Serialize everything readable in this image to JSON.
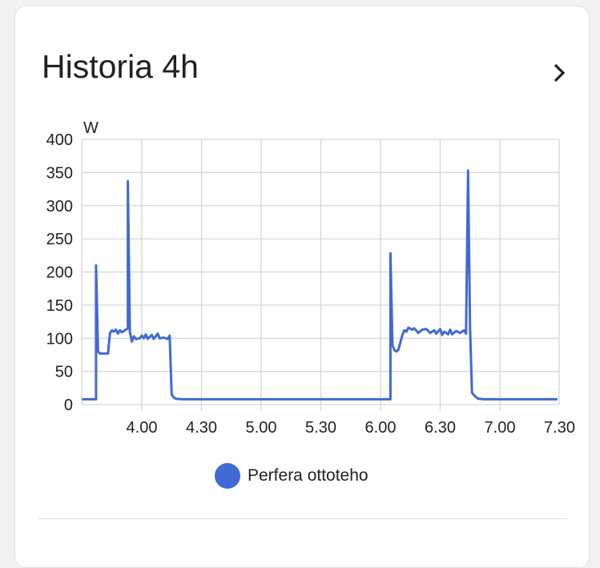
{
  "card": {
    "title": "Historia 4h",
    "more_icon": "chevron-right-icon"
  },
  "chart_data": {
    "type": "line",
    "ylabel": "W",
    "ylim": [
      0,
      400
    ],
    "yticks": [
      0,
      50,
      100,
      150,
      200,
      250,
      300,
      350,
      400
    ],
    "xlim": [
      "3:30",
      "7:29"
    ],
    "xticks": [
      "4.00",
      "4.30",
      "5.00",
      "5.30",
      "6.00",
      "6.30",
      "7.00",
      "7.30"
    ],
    "grid": true,
    "legend_position": "bottom",
    "series": [
      {
        "name": "Perfera ottoteho",
        "color": "#4169d4",
        "points": [
          [
            "3:30",
            8
          ],
          [
            "3:37",
            8
          ],
          [
            "3:37",
            210
          ],
          [
            "3:38",
            80
          ],
          [
            "3:39",
            77
          ],
          [
            "3:43",
            77
          ],
          [
            "3:44",
            108
          ],
          [
            "3:45",
            112
          ],
          [
            "3:46",
            110
          ],
          [
            "3:47",
            113
          ],
          [
            "3:48",
            107
          ],
          [
            "3:49",
            112
          ],
          [
            "3:50",
            109
          ],
          [
            "3:52",
            113
          ],
          [
            "3:53",
            115
          ],
          [
            "3:53",
            337
          ],
          [
            "3:54",
            110
          ],
          [
            "3:55",
            95
          ],
          [
            "3:56",
            103
          ],
          [
            "3:57",
            99
          ],
          [
            "3:59",
            100
          ],
          [
            "4:00",
            104
          ],
          [
            "4:01",
            100
          ],
          [
            "4:02",
            106
          ],
          [
            "4:03",
            99
          ],
          [
            "4:05",
            105
          ],
          [
            "4:06",
            99
          ],
          [
            "4:08",
            107
          ],
          [
            "4:09",
            100
          ],
          [
            "4:11",
            101
          ],
          [
            "4:13",
            99
          ],
          [
            "4:14",
            104
          ],
          [
            "4:15",
            15
          ],
          [
            "4:16",
            11
          ],
          [
            "4:17",
            9
          ],
          [
            "4:20",
            8
          ],
          [
            "6:05",
            8
          ],
          [
            "6:05",
            228
          ],
          [
            "6:06",
            90
          ],
          [
            "6:07",
            82
          ],
          [
            "6:08",
            80
          ],
          [
            "6:09",
            83
          ],
          [
            "6:11",
            105
          ],
          [
            "6:12",
            112
          ],
          [
            "6:13",
            110
          ],
          [
            "6:14",
            116
          ],
          [
            "6:16",
            113
          ],
          [
            "6:17",
            115
          ],
          [
            "6:19",
            108
          ],
          [
            "6:21",
            113
          ],
          [
            "6:23",
            114
          ],
          [
            "6:25",
            108
          ],
          [
            "6:27",
            112
          ],
          [
            "6:28",
            107
          ],
          [
            "6:30",
            114
          ],
          [
            "6:31",
            105
          ],
          [
            "6:32",
            110
          ],
          [
            "6:34",
            106
          ],
          [
            "6:35",
            113
          ],
          [
            "6:36",
            106
          ],
          [
            "6:38",
            111
          ],
          [
            "6:40",
            108
          ],
          [
            "6:42",
            112
          ],
          [
            "6:43",
            107
          ],
          [
            "6:44",
            353
          ],
          [
            "6:45",
            115
          ],
          [
            "6:46",
            18
          ],
          [
            "6:47",
            14
          ],
          [
            "6:49",
            9
          ],
          [
            "6:52",
            8
          ],
          [
            "7:29",
            8
          ]
        ]
      }
    ]
  }
}
